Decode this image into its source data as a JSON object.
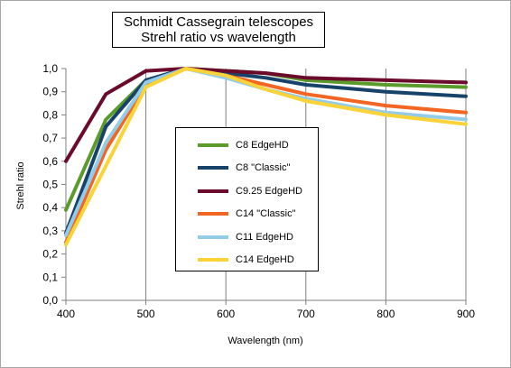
{
  "chart_data": {
    "type": "line",
    "title_lines": [
      "Schmidt Cassegrain telescopes",
      "Strehl ratio vs wavelength"
    ],
    "xlabel": "Wavelength (nm)",
    "ylabel": "Strehl ratio",
    "xlim": [
      400,
      900
    ],
    "ylim": [
      0,
      1
    ],
    "x_ticks": [
      "400",
      "500",
      "600",
      "700",
      "800",
      "900"
    ],
    "y_ticks": [
      "0,0",
      "0,1",
      "0,2",
      "0,3",
      "0,4",
      "0,5",
      "0,6",
      "0,7",
      "0,8",
      "0,9",
      "1,0"
    ],
    "grid": "vertical",
    "legend_position": "center",
    "x": [
      400,
      450,
      500,
      550,
      600,
      650,
      700,
      800,
      900
    ],
    "series": [
      {
        "name": "C8 EdgeHD",
        "color": "#5b9b2c",
        "values": [
          0.39,
          0.78,
          0.95,
          1.0,
          0.99,
          0.98,
          0.95,
          0.93,
          0.92
        ]
      },
      {
        "name": "C8 \"Classic\"",
        "color": "#17436b",
        "values": [
          0.29,
          0.75,
          0.95,
          1.0,
          0.98,
          0.96,
          0.93,
          0.9,
          0.88
        ]
      },
      {
        "name": "C9.25 EdgeHD",
        "color": "#6b0a2a",
        "values": [
          0.6,
          0.89,
          0.99,
          1.0,
          0.99,
          0.98,
          0.96,
          0.95,
          0.94
        ]
      },
      {
        "name": "C14 \"Classic\"",
        "color": "#f26522",
        "values": [
          0.25,
          0.65,
          0.93,
          1.0,
          0.97,
          0.93,
          0.89,
          0.84,
          0.81
        ]
      },
      {
        "name": "C11  EdgeHD",
        "color": "#93cce8",
        "values": [
          0.28,
          0.68,
          0.94,
          1.0,
          0.96,
          0.91,
          0.87,
          0.81,
          0.78
        ]
      },
      {
        "name": "C14 EdgeHD",
        "color": "#fad338",
        "values": [
          0.24,
          0.58,
          0.92,
          1.0,
          0.97,
          0.91,
          0.86,
          0.8,
          0.76
        ]
      }
    ]
  }
}
